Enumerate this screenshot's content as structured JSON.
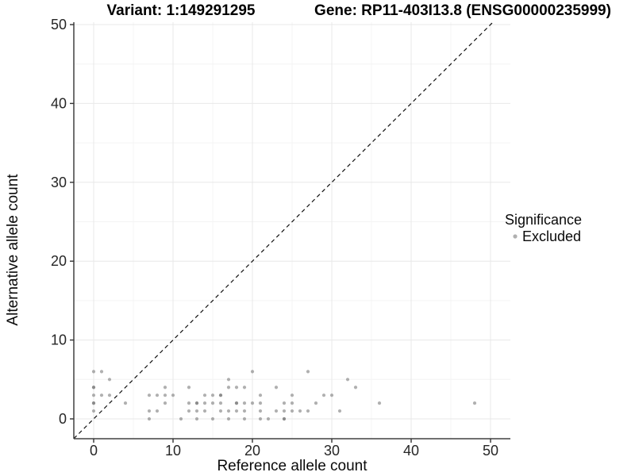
{
  "page": {
    "background": "#ffffff"
  },
  "chart_data": {
    "type": "scatter",
    "title_left": "Variant: 1:149291295",
    "title_right": "Gene: RP11-403I13.8 (ENSG00000235999)",
    "xlabel": "Reference allele count",
    "ylabel": "Alternative allele count",
    "xlim": [
      -2.5,
      52.5
    ],
    "ylim": [
      -2.5,
      50.3
    ],
    "xticks": [
      0,
      10,
      20,
      30,
      40,
      50
    ],
    "yticks": [
      0,
      10,
      20,
      30,
      40,
      50
    ],
    "xticks_minor": [
      5,
      15,
      25,
      35,
      45
    ],
    "yticks_minor": [
      5,
      15,
      25,
      35,
      45
    ],
    "grid": {
      "major_color": "#e8e8e8",
      "minor_color": "#f4f4f4",
      "background": "#ffffff"
    },
    "axis_color": "#404040",
    "identity_line": {
      "style": "dashed",
      "color": "#101010",
      "from": [
        -2.5,
        -2.5
      ],
      "to": [
        50.3,
        50.3
      ]
    },
    "legend": {
      "title": "Significance",
      "position": "right",
      "items": [
        {
          "label": "Excluded",
          "color": "#b0b0b0"
        }
      ]
    },
    "series": [
      {
        "name": "Excluded",
        "marker": "circle",
        "color": "#707070",
        "opacity": 0.55,
        "points": [
          [
            7,
            0
          ],
          [
            11,
            0
          ],
          [
            13,
            0
          ],
          [
            15,
            0
          ],
          [
            17,
            0
          ],
          [
            19,
            0
          ],
          [
            21,
            0
          ],
          [
            22,
            0
          ],
          [
            24,
            0
          ],
          [
            24,
            0
          ],
          [
            0,
            1
          ],
          [
            7,
            1
          ],
          [
            8,
            1
          ],
          [
            12,
            1
          ],
          [
            13,
            1
          ],
          [
            14,
            1
          ],
          [
            16,
            1
          ],
          [
            17,
            1
          ],
          [
            18,
            1
          ],
          [
            19,
            1
          ],
          [
            21,
            1
          ],
          [
            23,
            1
          ],
          [
            24,
            1
          ],
          [
            25,
            1
          ],
          [
            26,
            1
          ],
          [
            27,
            1
          ],
          [
            31,
            1
          ],
          [
            0,
            2
          ],
          [
            0,
            2
          ],
          [
            4,
            2
          ],
          [
            9,
            2
          ],
          [
            12,
            2
          ],
          [
            13,
            2
          ],
          [
            13,
            2
          ],
          [
            14,
            2
          ],
          [
            15,
            2
          ],
          [
            16,
            2
          ],
          [
            18,
            2
          ],
          [
            18,
            2
          ],
          [
            19,
            2
          ],
          [
            20,
            2
          ],
          [
            21,
            2
          ],
          [
            24,
            2
          ],
          [
            25,
            2
          ],
          [
            28,
            2
          ],
          [
            36,
            2
          ],
          [
            48,
            2
          ],
          [
            0,
            3
          ],
          [
            1,
            3
          ],
          [
            2,
            3
          ],
          [
            7,
            3
          ],
          [
            8,
            3
          ],
          [
            9,
            3
          ],
          [
            10,
            3
          ],
          [
            14,
            3
          ],
          [
            15,
            3
          ],
          [
            16,
            3
          ],
          [
            16,
            3
          ],
          [
            21,
            3
          ],
          [
            25,
            3
          ],
          [
            29,
            3
          ],
          [
            30,
            3
          ],
          [
            0,
            4
          ],
          [
            0,
            4
          ],
          [
            9,
            4
          ],
          [
            12,
            4
          ],
          [
            17,
            4
          ],
          [
            18,
            4
          ],
          [
            19,
            4
          ],
          [
            23,
            4
          ],
          [
            33,
            4
          ],
          [
            2,
            5
          ],
          [
            17,
            5
          ],
          [
            32,
            5
          ],
          [
            0,
            6
          ],
          [
            1,
            6
          ],
          [
            20,
            6
          ],
          [
            27,
            6
          ]
        ]
      }
    ]
  }
}
